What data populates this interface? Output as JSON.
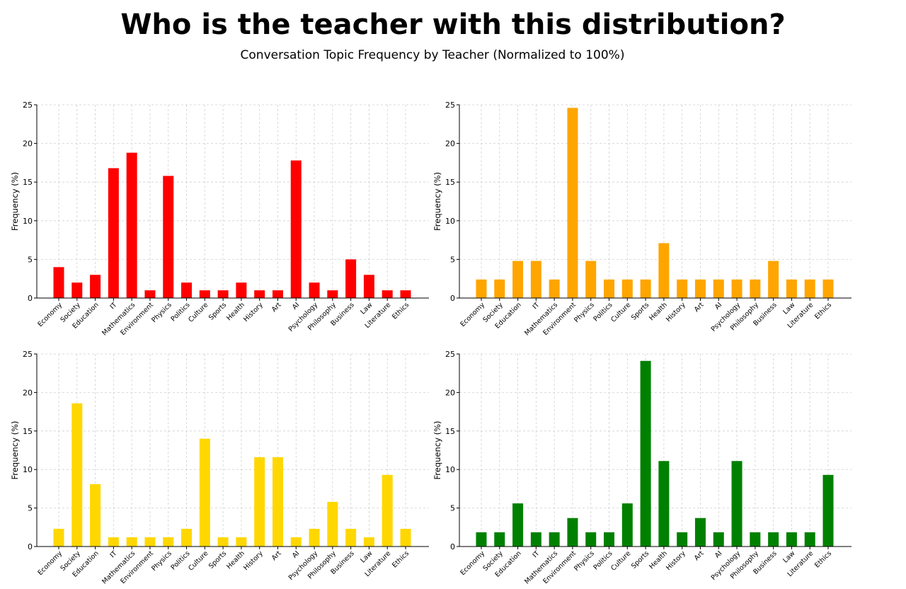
{
  "title": "Who is the teacher with this distribution?",
  "subtitle": "Conversation Topic Frequency by Teacher (Normalized to 100%)",
  "chart_data": [
    {
      "type": "bar",
      "color": "#ff0000",
      "ylabel": "Frequency (%)",
      "ylim": [
        0,
        25
      ],
      "yticks": [
        0,
        5,
        10,
        15,
        20,
        25
      ],
      "grid": true,
      "categories": [
        "Economy",
        "Society",
        "Education",
        "IT",
        "Mathematics",
        "Environment",
        "Physics",
        "Politics",
        "Culture",
        "Sports",
        "Health",
        "History",
        "Art",
        "AI",
        "Psychology",
        "Philosophy",
        "Business",
        "Law",
        "Literature",
        "Ethics"
      ],
      "values": [
        4,
        2,
        3,
        16.8,
        18.8,
        1,
        15.8,
        2,
        1,
        1,
        2,
        1,
        1,
        17.8,
        2,
        1,
        5,
        3,
        1,
        1
      ]
    },
    {
      "type": "bar",
      "color": "#ffa500",
      "ylabel": "Frequency (%)",
      "ylim": [
        0,
        25
      ],
      "yticks": [
        0,
        5,
        10,
        15,
        20,
        25
      ],
      "grid": true,
      "categories": [
        "Economy",
        "Society",
        "Education",
        "IT",
        "Mathematics",
        "Environment",
        "Physics",
        "Politics",
        "Culture",
        "Sports",
        "Health",
        "History",
        "Art",
        "AI",
        "Psychology",
        "Philosophy",
        "Business",
        "Law",
        "Literature",
        "Ethics"
      ],
      "values": [
        2.4,
        2.4,
        4.8,
        4.8,
        2.4,
        24.6,
        4.8,
        2.4,
        2.4,
        2.4,
        7.1,
        2.4,
        2.4,
        2.4,
        2.4,
        2.4,
        4.8,
        2.4,
        2.4,
        2.4
      ]
    },
    {
      "type": "bar",
      "color": "#ffd700",
      "ylabel": "Frequency (%)",
      "ylim": [
        0,
        25
      ],
      "yticks": [
        0,
        5,
        10,
        15,
        20,
        25
      ],
      "grid": true,
      "categories": [
        "Economy",
        "Society",
        "Education",
        "IT",
        "Mathematics",
        "Environment",
        "Physics",
        "Politics",
        "Culture",
        "Sports",
        "Health",
        "History",
        "Art",
        "AI",
        "Psychology",
        "Philosophy",
        "Business",
        "Law",
        "Literature",
        "Ethics"
      ],
      "values": [
        2.3,
        18.6,
        8.1,
        1.2,
        1.2,
        1.2,
        1.2,
        2.3,
        14,
        1.2,
        1.2,
        11.6,
        11.6,
        1.2,
        2.3,
        5.8,
        2.3,
        1.2,
        9.3,
        2.3
      ]
    },
    {
      "type": "bar",
      "color": "#008000",
      "ylabel": "Frequency (%)",
      "ylim": [
        0,
        25
      ],
      "yticks": [
        0,
        5,
        10,
        15,
        20,
        25
      ],
      "grid": true,
      "categories": [
        "Economy",
        "Society",
        "Education",
        "IT",
        "Mathematics",
        "Environment",
        "Physics",
        "Politics",
        "Culture",
        "Sports",
        "Health",
        "History",
        "Art",
        "AI",
        "Psychology",
        "Philosophy",
        "Business",
        "Law",
        "Literature",
        "Ethics"
      ],
      "values": [
        1.85,
        1.85,
        5.6,
        1.85,
        1.85,
        3.7,
        1.85,
        1.85,
        5.6,
        24.1,
        11.1,
        1.85,
        3.7,
        1.85,
        11.1,
        1.85,
        1.85,
        1.85,
        1.85,
        9.3
      ]
    }
  ]
}
